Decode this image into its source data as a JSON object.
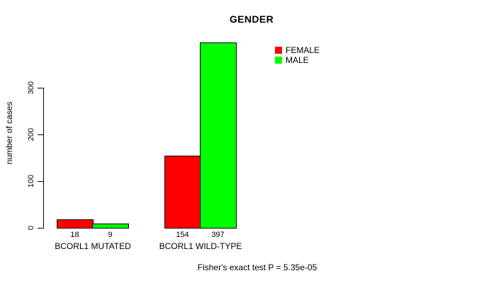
{
  "chart": {
    "title": "GENDER",
    "ylabel": "number of cases",
    "footnote": "Fisher's exact test P = 5.35e-05"
  },
  "legend": {
    "items": [
      {
        "label": "FEMALE",
        "color": "#ff0000"
      },
      {
        "label": "MALE",
        "color": "#00ff00"
      }
    ]
  },
  "chart_data": {
    "type": "bar",
    "grouped": true,
    "title": "GENDER",
    "xlabel": "",
    "ylabel": "number of cases",
    "categories": [
      "BCORL1 MUTATED",
      "BCORL1 WILD-TYPE"
    ],
    "series": [
      {
        "name": "FEMALE",
        "color": "#ff0000",
        "values": [
          18,
          154
        ]
      },
      {
        "name": "MALE",
        "color": "#00ff00",
        "values": [
          9,
          397
        ]
      }
    ],
    "yticks": [
      0,
      100,
      200,
      300
    ],
    "ylim": [
      0,
      400
    ],
    "grid": false,
    "legend_position": "top-right",
    "bar_borders": "#000000",
    "annotation": "Fisher's exact test P = 5.35e-05"
  }
}
